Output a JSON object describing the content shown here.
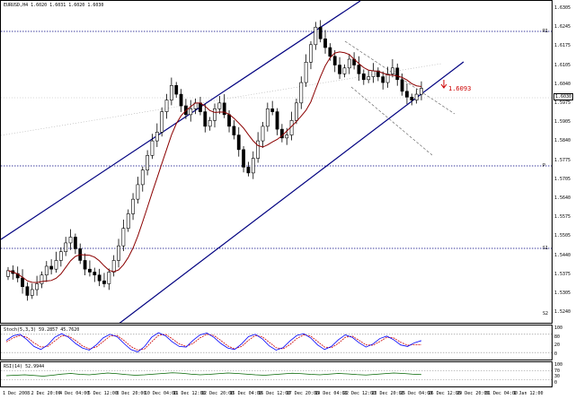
{
  "chart_info": {
    "title": "EURUSD,H4  1.6020 1.6031 1.6020 1.6030"
  },
  "annotation": {
    "price_callout": "1.6093"
  },
  "level_tags": {
    "upper": "R1",
    "middle": "P",
    "lower": "S1",
    "bottom": "S2"
  },
  "stochastic": {
    "label": "Stoch(5,3,3) 59.2857 45.7620",
    "axis": [
      "100",
      "80",
      "20",
      "0"
    ]
  },
  "rsi": {
    "label": "RSI(14) 52.9944",
    "axis": [
      "100",
      "70",
      "30",
      "0"
    ]
  },
  "colors": {
    "candle": "#000000",
    "ma": "#8b0000",
    "channel": "#000080",
    "dotted": "#000080",
    "stoch_main": "#0000ff",
    "stoch_signal": "#cc0000",
    "rsi": "#006400",
    "callout": "#cc0000"
  },
  "chart_data": {
    "type": "candlestick",
    "price_axis": [
      "1.6305",
      "1.6245",
      "1.6175",
      "1.6105",
      "1.6040",
      "1.5975",
      "1.5905",
      "1.5840",
      "1.5775",
      "1.5705",
      "1.5640",
      "1.5575",
      "1.5505",
      "1.5440",
      "1.5375",
      "1.5305",
      "1.5240"
    ],
    "current_price": "1.6030",
    "time_axis": [
      "1 Dec 2008",
      "2 Dec 20:00",
      "4 Dec 04:00",
      "5 Dec 12:00",
      "8 Dec 20:00",
      "10 Dec 04:00",
      "11 Dec 12:00",
      "12 Dec 20:00",
      "15 Dec 04:00",
      "16 Dec 12:00",
      "17 Dec 20:00",
      "19 Dec 04:00",
      "22 Dec 12:00",
      "23 Dec 20:00",
      "25 Dec 04:00",
      "26 Dec 12:00",
      "29 Dec 20:00",
      "31 Dec 04:00",
      "1 Jan 12:00"
    ],
    "candles_close": [
      1.5405,
      1.5395,
      1.538,
      1.535,
      1.532,
      1.534,
      1.536,
      1.539,
      1.542,
      1.541,
      1.544,
      1.547,
      1.55,
      1.552,
      1.548,
      1.544,
      1.541,
      1.54,
      1.539,
      1.537,
      1.536,
      1.54,
      1.544,
      1.549,
      1.555,
      1.56,
      1.565,
      1.57,
      1.575,
      1.58,
      1.585,
      1.588,
      1.595,
      1.599,
      1.604,
      1.601,
      1.597,
      1.594,
      1.596,
      1.598,
      1.595,
      1.59,
      1.592,
      1.596,
      1.598,
      1.594,
      1.59,
      1.587,
      1.582,
      1.576,
      1.574,
      1.579,
      1.585,
      1.59,
      1.596,
      1.595,
      1.589,
      1.586,
      1.587,
      1.592,
      1.598,
      1.605,
      1.612,
      1.618,
      1.624,
      1.62,
      1.617,
      1.614,
      1.611,
      1.608,
      1.61,
      1.613,
      1.611,
      1.608,
      1.606,
      1.607,
      1.609,
      1.607,
      1.605,
      1.608,
      1.61,
      1.606,
      1.602,
      1.6,
      1.599,
      1.601,
      1.603
    ],
    "stoch_main": [
      60,
      75,
      80,
      62,
      40,
      30,
      45,
      70,
      82,
      70,
      50,
      35,
      28,
      45,
      68,
      80,
      72,
      50,
      30,
      22,
      40,
      70,
      85,
      75,
      55,
      40,
      38,
      60,
      78,
      84,
      70,
      50,
      35,
      30,
      48,
      72,
      80,
      65,
      42,
      28,
      36,
      58,
      76,
      82,
      68,
      45,
      30,
      40,
      62,
      78,
      70,
      52,
      38,
      48,
      66,
      74,
      62,
      45,
      40,
      52,
      59
    ],
    "stoch_signal": [
      55,
      68,
      76,
      70,
      52,
      38,
      40,
      58,
      75,
      74,
      60,
      42,
      32,
      38,
      56,
      74,
      76,
      60,
      40,
      28,
      32,
      55,
      76,
      80,
      65,
      48,
      40,
      50,
      68,
      80,
      76,
      60,
      42,
      32,
      40,
      60,
      76,
      72,
      54,
      36,
      32,
      46,
      66,
      78,
      74,
      56,
      38,
      36,
      50,
      70,
      74,
      60,
      45,
      44,
      56,
      70,
      68,
      54,
      44,
      46,
      46
    ],
    "rsi_values": [
      48,
      50,
      52,
      49,
      46,
      50,
      55,
      58,
      54,
      52,
      56,
      60,
      57,
      53,
      50,
      52,
      55,
      58,
      61,
      59,
      55,
      52,
      54,
      57,
      60,
      58,
      55,
      52,
      50,
      53,
      56,
      59,
      57,
      54,
      52,
      55,
      58,
      56,
      53,
      51,
      54,
      57,
      60,
      58,
      55,
      53
    ],
    "stoch_levels": [
      80,
      20
    ],
    "rsi_levels": [
      70,
      30
    ]
  }
}
